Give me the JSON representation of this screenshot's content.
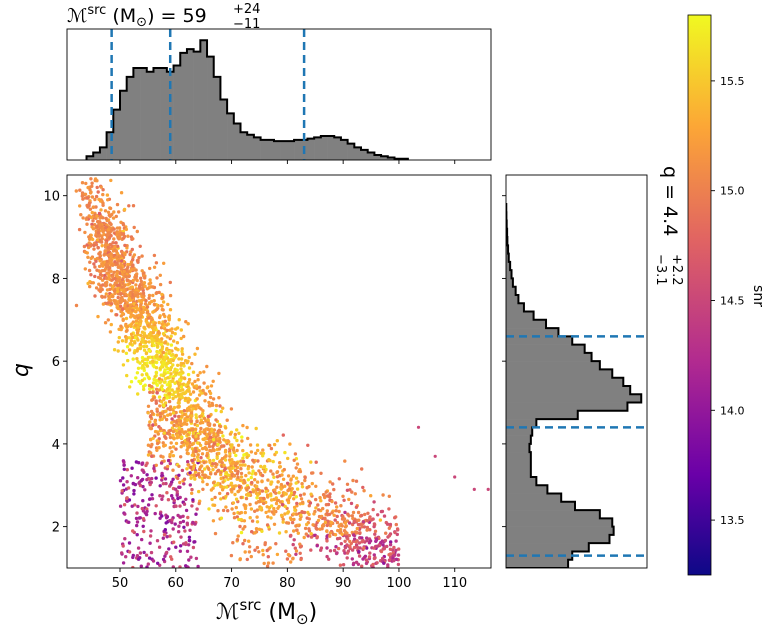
{
  "chart_data": [
    {
      "panel": "top-marginal",
      "type": "histogram",
      "title_prefix": "ℳ",
      "title_sup": "src",
      "title_units": " (M",
      "title_units_sub": "⊙",
      "title_equals": ") = 59",
      "title_plus": "+24",
      "title_minus": "−11",
      "x_range": [
        40.5,
        116.5
      ],
      "bins_x_start": 44,
      "bins_width": 1.2,
      "counts": [
        0.03,
        0.06,
        0.1,
        0.22,
        0.4,
        0.55,
        0.66,
        0.73,
        0.73,
        0.7,
        0.73,
        0.73,
        0.7,
        0.75,
        0.85,
        0.88,
        0.86,
        0.95,
        0.82,
        0.66,
        0.48,
        0.37,
        0.29,
        0.22,
        0.2,
        0.18,
        0.16,
        0.16,
        0.15,
        0.15,
        0.15,
        0.16,
        0.16,
        0.17,
        0.18,
        0.19,
        0.19,
        0.18,
        0.16,
        0.13,
        0.1,
        0.08,
        0.06,
        0.04,
        0.03,
        0.02,
        0.01,
        0.01
      ],
      "quantiles": [
        48.5,
        59.0,
        83.0
      ]
    },
    {
      "panel": "main-scatter",
      "type": "scatter",
      "xlabel_main": "ℳ",
      "xlabel_sup": "src",
      "xlabel_units": " (M",
      "xlabel_sub": "⊙",
      "xlabel_close": ")",
      "ylabel": "q",
      "xlim": [
        40.5,
        116.5
      ],
      "ylim": [
        1.0,
        10.5
      ],
      "xticks": [
        50,
        60,
        70,
        80,
        90,
        100,
        110
      ],
      "yticks": [
        2,
        4,
        6,
        8,
        10
      ],
      "colorbar": {
        "label": "snr",
        "range": [
          13.25,
          15.8
        ],
        "ticks": [
          13.5,
          14.0,
          14.5,
          15.0,
          15.5
        ],
        "colors": [
          "#0d0887",
          "#6a00a8",
          "#b12a90",
          "#e16462",
          "#fca636",
          "#f0f921"
        ]
      }
    },
    {
      "panel": "right-marginal",
      "type": "histogram",
      "orientation": "horizontal",
      "title": "q = 4.4",
      "title_plus": "+2.2",
      "title_minus": "−3.1",
      "y_range": [
        1.0,
        10.5
      ],
      "bins_y_start": 1.0,
      "bins_width": 0.2,
      "counts": [
        0.45,
        0.48,
        0.6,
        0.75,
        0.78,
        0.77,
        0.68,
        0.5,
        0.4,
        0.3,
        0.22,
        0.18,
        0.18,
        0.18,
        0.17,
        0.18,
        0.19,
        0.22,
        0.52,
        0.88,
        0.98,
        0.9,
        0.85,
        0.77,
        0.68,
        0.62,
        0.57,
        0.48,
        0.38,
        0.29,
        0.2,
        0.13,
        0.09,
        0.07,
        0.05,
        0.04,
        0.03,
        0.02,
        0.015,
        0.01,
        0.008,
        0.005,
        0.003,
        0.002
      ],
      "quantiles": [
        1.3,
        4.4,
        6.6
      ]
    }
  ]
}
